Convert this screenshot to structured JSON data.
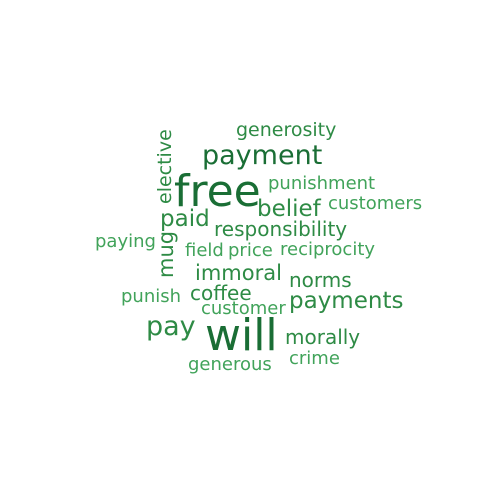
{
  "colors": {
    "dark": "#1a6e35",
    "mid": "#2e8b45",
    "light": "#41a35a"
  },
  "words": [
    {
      "text": "generosity"
    },
    {
      "text": "payment"
    },
    {
      "text": "elective"
    },
    {
      "text": "free"
    },
    {
      "text": "punishment"
    },
    {
      "text": "belief"
    },
    {
      "text": "customers"
    },
    {
      "text": "paid"
    },
    {
      "text": "responsibility"
    },
    {
      "text": "paying"
    },
    {
      "text": "mug"
    },
    {
      "text": "field"
    },
    {
      "text": "price"
    },
    {
      "text": "reciprocity"
    },
    {
      "text": "immoral"
    },
    {
      "text": "norms"
    },
    {
      "text": "punish"
    },
    {
      "text": "coffee"
    },
    {
      "text": "payments"
    },
    {
      "text": "customer"
    },
    {
      "text": "pay"
    },
    {
      "text": "will"
    },
    {
      "text": "morally"
    },
    {
      "text": "crime"
    },
    {
      "text": "generous"
    }
  ]
}
